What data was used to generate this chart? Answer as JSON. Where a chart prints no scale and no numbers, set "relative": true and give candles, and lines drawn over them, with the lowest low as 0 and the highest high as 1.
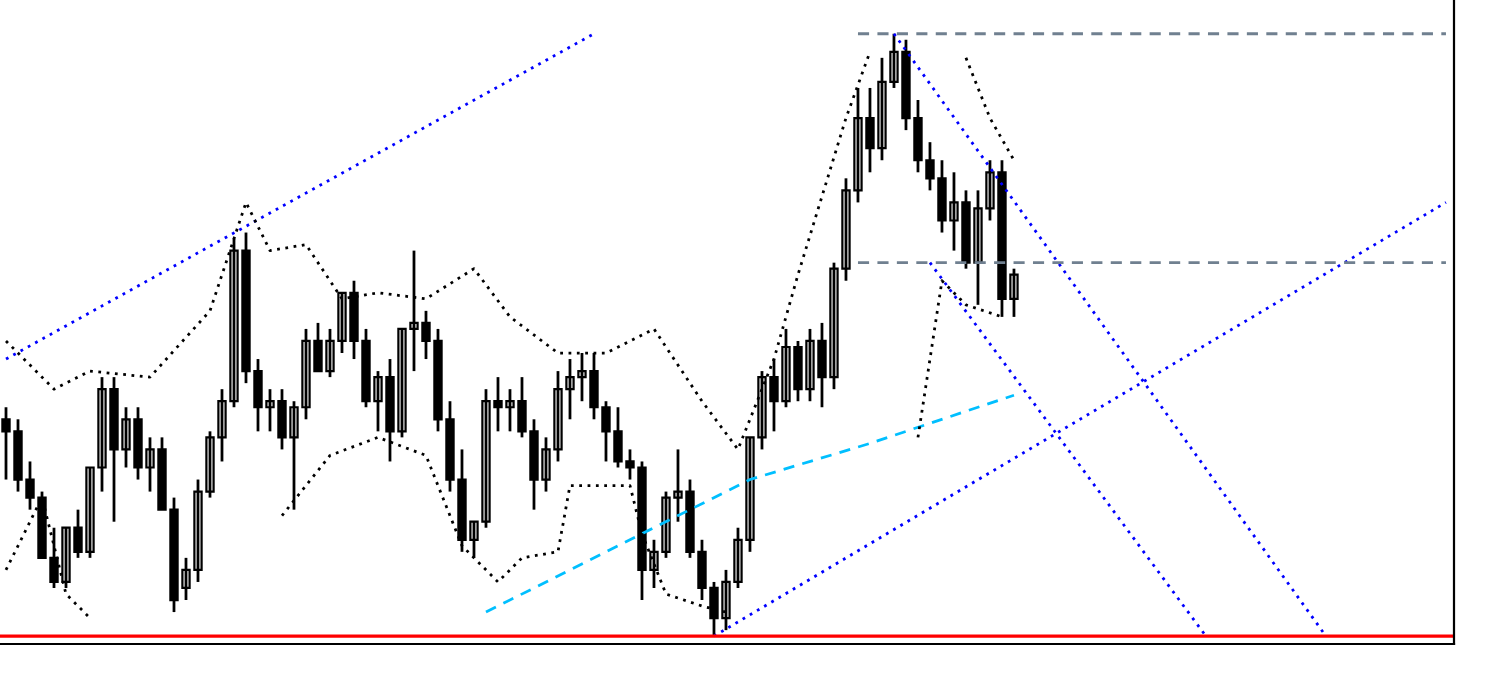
{
  "chart_data": {
    "type": "candlestick",
    "relative": true,
    "legend": false,
    "categories": [
      null,
      null,
      null,
      null,
      null,
      null,
      null,
      null,
      null,
      null,
      null,
      null,
      null,
      null,
      null,
      null,
      null,
      null,
      null,
      null,
      null,
      null,
      null,
      null,
      null,
      null,
      null,
      null,
      null,
      null,
      null,
      null,
      null,
      null,
      null,
      null,
      null,
      null,
      null,
      null,
      null,
      null,
      null,
      null,
      null,
      null,
      null,
      null,
      null,
      null,
      null,
      null,
      null,
      null,
      null,
      null,
      null,
      null,
      null,
      null,
      null,
      null,
      null,
      null,
      null,
      null,
      null,
      null,
      null,
      null,
      null,
      null,
      null,
      null,
      null,
      null,
      null,
      null,
      null,
      null,
      null,
      null,
      null,
      null,
      null,
      null,
      null,
      null,
      null,
      null,
      null,
      null,
      null,
      null,
      null,
      null,
      null,
      null,
      null,
      null,
      null,
      null,
      null,
      null,
      null,
      null,
      null,
      null,
      null,
      null,
      null,
      null,
      null,
      null,
      null,
      null,
      null,
      null,
      null,
      null,
      null
    ],
    "ohlc": [
      [
        0.36,
        0.38,
        0.26,
        0.34
      ],
      [
        0.34,
        0.36,
        0.24,
        0.26
      ],
      [
        0.26,
        0.29,
        0.21,
        0.23
      ],
      [
        0.23,
        0.24,
        0.13,
        0.13
      ],
      [
        0.13,
        0.18,
        0.08,
        0.09
      ],
      [
        0.09,
        0.18,
        0.08,
        0.18
      ],
      [
        0.18,
        0.21,
        0.13,
        0.14
      ],
      [
        0.14,
        0.28,
        0.13,
        0.28
      ],
      [
        0.28,
        0.43,
        0.24,
        0.41
      ],
      [
        0.41,
        0.43,
        0.19,
        0.31
      ],
      [
        0.31,
        0.38,
        0.28,
        0.36
      ],
      [
        0.36,
        0.38,
        0.26,
        0.28
      ],
      [
        0.28,
        0.33,
        0.24,
        0.31
      ],
      [
        0.31,
        0.33,
        0.21,
        0.21
      ],
      [
        0.21,
        0.23,
        0.04,
        0.06
      ],
      [
        0.08,
        0.13,
        0.06,
        0.11
      ],
      [
        0.11,
        0.26,
        0.09,
        0.24
      ],
      [
        0.24,
        0.34,
        0.23,
        0.33
      ],
      [
        0.33,
        0.41,
        0.29,
        0.39
      ],
      [
        0.39,
        0.66,
        0.38,
        0.64
      ],
      [
        0.64,
        0.67,
        0.42,
        0.44
      ],
      [
        0.44,
        0.46,
        0.34,
        0.38
      ],
      [
        0.38,
        0.41,
        0.34,
        0.39
      ],
      [
        0.39,
        0.41,
        0.31,
        0.33
      ],
      [
        0.33,
        0.39,
        0.21,
        0.38
      ],
      [
        0.38,
        0.51,
        0.36,
        0.49
      ],
      [
        0.49,
        0.52,
        0.44,
        0.44
      ],
      [
        0.44,
        0.51,
        0.43,
        0.49
      ],
      [
        0.49,
        0.57,
        0.47,
        0.57
      ],
      [
        0.57,
        0.59,
        0.46,
        0.49
      ],
      [
        0.49,
        0.51,
        0.38,
        0.39
      ],
      [
        0.39,
        0.44,
        0.34,
        0.43
      ],
      [
        0.43,
        0.46,
        0.29,
        0.34
      ],
      [
        0.34,
        0.51,
        0.33,
        0.51
      ],
      [
        0.51,
        0.64,
        0.44,
        0.52
      ],
      [
        0.52,
        0.54,
        0.46,
        0.49
      ],
      [
        0.49,
        0.51,
        0.34,
        0.36
      ],
      [
        0.36,
        0.39,
        0.24,
        0.26
      ],
      [
        0.26,
        0.31,
        0.14,
        0.16
      ],
      [
        0.16,
        0.19,
        0.13,
        0.19
      ],
      [
        0.19,
        0.41,
        0.18,
        0.39
      ],
      [
        0.39,
        0.43,
        0.34,
        0.38
      ],
      [
        0.38,
        0.41,
        0.34,
        0.39
      ],
      [
        0.39,
        0.43,
        0.33,
        0.34
      ],
      [
        0.34,
        0.36,
        0.21,
        0.26
      ],
      [
        0.26,
        0.33,
        0.24,
        0.31
      ],
      [
        0.31,
        0.44,
        0.29,
        0.41
      ],
      [
        0.41,
        0.46,
        0.36,
        0.43
      ],
      [
        0.43,
        0.47,
        0.39,
        0.44
      ],
      [
        0.44,
        0.47,
        0.36,
        0.38
      ],
      [
        0.38,
        0.39,
        0.29,
        0.34
      ],
      [
        0.34,
        0.38,
        0.28,
        0.29
      ],
      [
        0.29,
        0.31,
        0.26,
        0.28
      ],
      [
        0.28,
        0.29,
        0.06,
        0.11
      ],
      [
        0.11,
        0.16,
        0.08,
        0.14
      ],
      [
        0.14,
        0.24,
        0.13,
        0.23
      ],
      [
        0.23,
        0.31,
        0.19,
        0.24
      ],
      [
        0.24,
        0.26,
        0.13,
        0.14
      ],
      [
        0.14,
        0.16,
        0.06,
        0.08
      ],
      [
        0.08,
        0.09,
        0.0,
        0.03
      ],
      [
        0.03,
        0.11,
        0.01,
        0.09
      ],
      [
        0.09,
        0.18,
        0.08,
        0.16
      ],
      [
        0.16,
        0.33,
        0.14,
        0.33
      ],
      [
        0.33,
        0.44,
        0.31,
        0.43
      ],
      [
        0.43,
        0.46,
        0.34,
        0.39
      ],
      [
        0.39,
        0.51,
        0.38,
        0.48
      ],
      [
        0.48,
        0.49,
        0.39,
        0.41
      ],
      [
        0.41,
        0.51,
        0.39,
        0.49
      ],
      [
        0.49,
        0.52,
        0.38,
        0.43
      ],
      [
        0.43,
        0.62,
        0.41,
        0.61
      ],
      [
        0.61,
        0.76,
        0.59,
        0.74
      ],
      [
        0.74,
        0.91,
        0.72,
        0.86
      ],
      [
        0.86,
        0.91,
        0.77,
        0.81
      ],
      [
        0.81,
        0.96,
        0.79,
        0.92
      ],
      [
        0.92,
        1.0,
        0.91,
        0.97
      ],
      [
        0.97,
        0.99,
        0.84,
        0.86
      ],
      [
        0.86,
        0.89,
        0.77,
        0.79
      ],
      [
        0.79,
        0.82,
        0.74,
        0.76
      ],
      [
        0.76,
        0.79,
        0.67,
        0.69
      ],
      [
        0.69,
        0.77,
        0.64,
        0.72
      ],
      [
        0.72,
        0.74,
        0.61,
        0.62
      ],
      [
        0.62,
        0.74,
        0.55,
        0.71
      ],
      [
        0.71,
        0.79,
        0.69,
        0.77
      ],
      [
        0.77,
        0.79,
        0.53,
        0.56
      ],
      [
        0.56,
        0.61,
        0.53,
        0.6
      ],
      null,
      null,
      null,
      null,
      null,
      null,
      null,
      null,
      null,
      null,
      null,
      null,
      null,
      null,
      null,
      null,
      null,
      null,
      null,
      null,
      null,
      null,
      null,
      null,
      null,
      null,
      null,
      null,
      null,
      null,
      null,
      null,
      null,
      null,
      null,
      null
    ],
    "ref_lines": [
      {
        "axis": "y",
        "value": 0.0,
        "color": "#ff0000"
      }
    ],
    "series": [
      {
        "type": "line",
        "color": "#0000ff",
        "line_style": "dotted",
        "values": [
          0.46,
          null,
          null,
          null,
          null,
          null,
          null,
          null,
          null,
          null,
          null,
          null,
          null,
          null,
          null,
          null,
          null,
          null,
          null,
          null,
          null,
          null,
          null,
          null,
          null,
          null,
          null,
          null,
          null,
          null,
          null,
          null,
          null,
          null,
          null,
          null,
          null,
          null,
          null,
          null,
          null,
          null,
          null,
          null,
          null,
          null,
          null,
          null,
          null,
          1.0,
          null,
          null,
          null,
          null,
          null,
          null,
          null,
          null,
          null,
          null,
          null,
          null,
          null,
          null,
          null,
          null,
          null,
          null,
          null,
          null,
          null,
          null,
          null,
          null,
          null,
          null,
          null,
          null,
          null,
          null,
          null,
          null,
          null,
          null,
          null,
          null,
          null,
          null,
          null,
          null,
          null,
          null,
          null,
          null,
          null,
          null,
          null,
          null,
          null,
          null,
          null,
          null,
          null,
          null,
          null,
          null,
          null,
          null,
          null,
          null,
          null,
          null,
          null,
          null,
          null,
          null,
          null,
          null,
          null,
          null,
          null
        ]
      },
      {
        "type": "line",
        "color": "#0000ff",
        "line_style": "dotted",
        "values": [
          null,
          null,
          null,
          null,
          null,
          null,
          null,
          null,
          null,
          null,
          null,
          null,
          null,
          null,
          null,
          null,
          null,
          null,
          null,
          null,
          null,
          null,
          null,
          null,
          null,
          null,
          null,
          null,
          null,
          null,
          null,
          null,
          null,
          null,
          null,
          null,
          null,
          null,
          null,
          null,
          null,
          null,
          null,
          null,
          null,
          null,
          null,
          null,
          null,
          null,
          null,
          null,
          null,
          null,
          null,
          null,
          null,
          null,
          null,
          0.0,
          null,
          null,
          null,
          null,
          null,
          null,
          null,
          null,
          null,
          null,
          null,
          null,
          null,
          null,
          null,
          null,
          null,
          null,
          null,
          null,
          null,
          null,
          null,
          null,
          null,
          null,
          null,
          null,
          null,
          null,
          null,
          null,
          null,
          null,
          null,
          null,
          null,
          null,
          null,
          null,
          null,
          null,
          null,
          null,
          null,
          null,
          null,
          null,
          null,
          null,
          null,
          null,
          null,
          null,
          null,
          null,
          null,
          null,
          null,
          null,
          0.72
        ]
      },
      {
        "type": "line",
        "color": "#0000ff",
        "line_style": "dotted",
        "values": [
          null,
          null,
          null,
          null,
          null,
          null,
          null,
          null,
          null,
          null,
          null,
          null,
          null,
          null,
          null,
          null,
          null,
          null,
          null,
          null,
          null,
          null,
          null,
          null,
          null,
          null,
          null,
          null,
          null,
          null,
          null,
          null,
          null,
          null,
          null,
          null,
          null,
          null,
          null,
          null,
          null,
          null,
          null,
          null,
          null,
          null,
          null,
          null,
          null,
          null,
          null,
          null,
          null,
          null,
          null,
          null,
          null,
          null,
          null,
          null,
          null,
          null,
          null,
          null,
          null,
          null,
          null,
          null,
          null,
          null,
          null,
          null,
          null,
          null,
          1.0,
          null,
          null,
          null,
          null,
          null,
          null,
          null,
          null,
          null,
          null,
          null,
          null,
          null,
          null,
          null,
          null,
          null,
          null,
          null,
          null,
          null,
          null,
          null,
          null,
          null,
          null,
          null,
          null,
          null,
          null,
          null,
          null,
          null,
          null,
          null,
          0.0,
          null,
          null,
          null,
          null,
          null,
          null,
          null,
          null,
          null,
          null
        ]
      },
      {
        "type": "line",
        "color": "#0000ff",
        "line_style": "dotted",
        "values": [
          null,
          null,
          null,
          null,
          null,
          null,
          null,
          null,
          null,
          null,
          null,
          null,
          null,
          null,
          null,
          null,
          null,
          null,
          null,
          null,
          null,
          null,
          null,
          null,
          null,
          null,
          null,
          null,
          null,
          null,
          null,
          null,
          null,
          null,
          null,
          null,
          null,
          null,
          null,
          null,
          null,
          null,
          null,
          null,
          null,
          null,
          null,
          null,
          null,
          null,
          null,
          null,
          null,
          null,
          null,
          null,
          null,
          null,
          null,
          null,
          null,
          null,
          null,
          null,
          null,
          null,
          null,
          null,
          null,
          null,
          null,
          null,
          null,
          null,
          null,
          null,
          null,
          0.62,
          null,
          null,
          null,
          null,
          null,
          null,
          null,
          null,
          null,
          null,
          null,
          null,
          null,
          null,
          null,
          null,
          null,
          null,
          null,
          null,
          null,
          null,
          0.0,
          null,
          null,
          null,
          null,
          null,
          null,
          null,
          null,
          null,
          null,
          null,
          null,
          null,
          null,
          null,
          null,
          null,
          null,
          null,
          null
        ]
      },
      {
        "type": "line",
        "color": "#00bfff",
        "line_style": "dashed",
        "values": [
          null,
          null,
          null,
          null,
          null,
          null,
          null,
          null,
          null,
          null,
          null,
          null,
          null,
          null,
          null,
          null,
          null,
          null,
          null,
          null,
          null,
          null,
          null,
          null,
          null,
          null,
          null,
          null,
          null,
          null,
          null,
          null,
          null,
          null,
          null,
          null,
          null,
          null,
          null,
          null,
          0.04,
          null,
          null,
          null,
          null,
          null,
          null,
          null,
          null,
          null,
          null,
          null,
          null,
          null,
          null,
          null,
          null,
          null,
          null,
          null,
          null,
          null,
          0.26,
          null,
          null,
          null,
          null,
          null,
          null,
          null,
          null,
          null,
          0.32,
          null,
          null,
          null,
          null,
          null,
          null,
          null,
          null,
          null,
          null,
          null,
          0.4,
          null,
          null,
          null,
          null,
          null,
          null,
          null,
          null,
          null,
          null,
          null,
          null,
          null,
          null,
          null,
          null,
          null,
          null,
          null,
          null,
          null,
          null,
          null,
          null,
          null,
          null,
          null,
          null,
          null,
          null,
          null,
          null,
          null,
          null,
          null,
          null
        ]
      },
      {
        "type": "line",
        "color": "#708090",
        "line_style": "dashed",
        "values": [
          null,
          null,
          null,
          null,
          null,
          null,
          null,
          null,
          null,
          null,
          null,
          null,
          null,
          null,
          null,
          null,
          null,
          null,
          null,
          null,
          null,
          null,
          null,
          null,
          null,
          null,
          null,
          null,
          null,
          null,
          null,
          null,
          null,
          null,
          null,
          null,
          null,
          null,
          null,
          null,
          null,
          null,
          null,
          null,
          null,
          null,
          null,
          null,
          null,
          null,
          null,
          null,
          null,
          null,
          null,
          null,
          null,
          null,
          null,
          null,
          null,
          null,
          null,
          null,
          null,
          null,
          null,
          null,
          null,
          null,
          null,
          1.0,
          null,
          null,
          null,
          null,
          null,
          null,
          null,
          null,
          null,
          null,
          null,
          null,
          null,
          null,
          null,
          null,
          null,
          null,
          null,
          null,
          null,
          null,
          null,
          null,
          null,
          null,
          null,
          null,
          null,
          null,
          null,
          null,
          null,
          null,
          null,
          null,
          null,
          null,
          null,
          null,
          null,
          null,
          null,
          null,
          null,
          null,
          null,
          null,
          1.0
        ]
      },
      {
        "type": "line",
        "color": "#708090",
        "line_style": "dashed",
        "values": [
          null,
          null,
          null,
          null,
          null,
          null,
          null,
          null,
          null,
          null,
          null,
          null,
          null,
          null,
          null,
          null,
          null,
          null,
          null,
          null,
          null,
          null,
          null,
          null,
          null,
          null,
          null,
          null,
          null,
          null,
          null,
          null,
          null,
          null,
          null,
          null,
          null,
          null,
          null,
          null,
          null,
          null,
          null,
          null,
          null,
          null,
          null,
          null,
          null,
          null,
          null,
          null,
          null,
          null,
          null,
          null,
          null,
          null,
          null,
          null,
          null,
          null,
          null,
          null,
          null,
          null,
          null,
          null,
          null,
          null,
          null,
          0.62,
          null,
          null,
          null,
          null,
          null,
          null,
          null,
          null,
          null,
          null,
          null,
          null,
          null,
          null,
          null,
          null,
          null,
          null,
          null,
          null,
          null,
          null,
          null,
          null,
          null,
          null,
          null,
          null,
          null,
          null,
          null,
          null,
          null,
          null,
          null,
          null,
          null,
          null,
          null,
          null,
          null,
          null,
          null,
          null,
          null,
          null,
          null,
          null,
          0.62
        ]
      },
      {
        "type": "line",
        "color": "#000000",
        "line_style": "dotted",
        "values": [
          0.49,
          null,
          null,
          null,
          0.41,
          null,
          null,
          0.44,
          null,
          null,
          null,
          null,
          0.43,
          null,
          null,
          null,
          null,
          0.54,
          null,
          null,
          0.72,
          null,
          0.64,
          null,
          null,
          0.65,
          null,
          null,
          0.56,
          null,
          null,
          0.57,
          null,
          null,
          null,
          0.56,
          null,
          null,
          null,
          0.61,
          null,
          null,
          0.53,
          null,
          null,
          null,
          0.47,
          null,
          null,
          null,
          0.47,
          null,
          null,
          null,
          0.51,
          null,
          null,
          null,
          0.39,
          null,
          null,
          0.31,
          null,
          null,
          0.46,
          null,
          0.6,
          null,
          null,
          null,
          0.86,
          null,
          0.97,
          null,
          null,
          null,
          null,
          null,
          null,
          null,
          null,
          null,
          null,
          null,
          null,
          null,
          null,
          null,
          null,
          null,
          null,
          null,
          null,
          null,
          null,
          null,
          null,
          null,
          null,
          null,
          null,
          null,
          null,
          null,
          null,
          null,
          null,
          null,
          null,
          null,
          null,
          null,
          null,
          null,
          null,
          null,
          null,
          null,
          null,
          null,
          null
        ]
      },
      {
        "type": "line",
        "color": "#000000",
        "line_style": "dotted",
        "values": [
          null,
          null,
          null,
          null,
          null,
          null,
          null,
          null,
          null,
          null,
          null,
          null,
          null,
          null,
          null,
          null,
          null,
          null,
          null,
          null,
          null,
          null,
          null,
          null,
          null,
          null,
          null,
          null,
          null,
          null,
          null,
          null,
          null,
          null,
          null,
          null,
          null,
          null,
          null,
          null,
          null,
          null,
          null,
          null,
          null,
          null,
          null,
          null,
          null,
          null,
          null,
          null,
          null,
          null,
          null,
          null,
          null,
          null,
          null,
          null,
          null,
          null,
          null,
          null,
          null,
          null,
          null,
          null,
          null,
          null,
          null,
          null,
          null,
          null,
          null,
          null,
          null,
          null,
          null,
          null,
          0.96,
          null,
          0.86,
          null,
          0.79,
          null,
          null,
          null,
          null,
          null,
          null,
          null,
          null,
          null,
          null,
          null,
          null,
          null,
          null,
          null,
          null,
          null,
          null,
          null,
          null,
          null,
          null,
          null,
          null,
          null,
          null,
          null,
          null,
          null,
          null,
          null,
          null,
          null,
          null,
          null,
          null
        ]
      },
      {
        "type": "line",
        "color": "#000000",
        "line_style": "dotted",
        "values": [
          0.11,
          null,
          null,
          0.23,
          null,
          0.07,
          null,
          0.03,
          null,
          null,
          null,
          null,
          null,
          null,
          null,
          null,
          null,
          null,
          null,
          null,
          null,
          null,
          null,
          null,
          null,
          null,
          null,
          null,
          null,
          null,
          null,
          null,
          null,
          null,
          null,
          null,
          null,
          null,
          null,
          null,
          null,
          null,
          null,
          null,
          null,
          null,
          null,
          null,
          null,
          null,
          null,
          null,
          null,
          null,
          null,
          null,
          null,
          null,
          null,
          null,
          null,
          null,
          null,
          null,
          null,
          null,
          null,
          null,
          null,
          null,
          null,
          null,
          null,
          null,
          null,
          null,
          null,
          null,
          null,
          null,
          null,
          null,
          null,
          null,
          null,
          null,
          null,
          null,
          null,
          null,
          null,
          null,
          null,
          null,
          null,
          null,
          null,
          null,
          null,
          null,
          null,
          null,
          null,
          null,
          null,
          null,
          null,
          null,
          null,
          null,
          null,
          null,
          null,
          null,
          null,
          null,
          null,
          null,
          null,
          null,
          null
        ]
      },
      {
        "type": "line",
        "color": "#000000",
        "line_style": "dotted",
        "values": [
          null,
          null,
          null,
          null,
          null,
          null,
          null,
          null,
          null,
          null,
          null,
          null,
          null,
          null,
          null,
          null,
          null,
          null,
          null,
          null,
          null,
          null,
          null,
          0.2,
          null,
          null,
          null,
          0.3,
          null,
          null,
          null,
          0.33,
          null,
          null,
          null,
          0.3,
          null,
          null,
          0.15,
          null,
          null,
          0.09,
          null,
          0.13,
          null,
          null,
          0.14,
          0.25,
          null,
          null,
          0.25,
          null,
          0.25,
          0.17,
          null,
          0.07,
          null,
          null,
          0.05,
          null,
          0.04,
          null,
          null,
          null,
          null,
          null,
          null,
          null,
          null,
          null,
          null,
          null,
          null,
          null,
          null,
          null,
          null,
          null,
          null,
          null,
          null,
          null,
          null,
          null,
          null,
          null,
          null,
          null,
          null,
          null,
          null,
          null,
          null,
          null,
          null,
          null,
          null,
          null,
          null,
          null,
          null,
          null,
          null,
          null,
          null,
          null,
          null,
          null,
          null,
          null,
          null,
          null,
          null,
          null,
          null,
          null,
          null,
          null,
          null,
          null,
          null
        ]
      },
      {
        "type": "line",
        "color": "#000000",
        "line_style": "dotted",
        "values": [
          null,
          null,
          null,
          null,
          null,
          null,
          null,
          null,
          null,
          null,
          null,
          null,
          null,
          null,
          null,
          null,
          null,
          null,
          null,
          null,
          null,
          null,
          null,
          null,
          null,
          null,
          null,
          null,
          null,
          null,
          null,
          null,
          null,
          null,
          null,
          null,
          null,
          null,
          null,
          null,
          null,
          null,
          null,
          null,
          null,
          null,
          null,
          null,
          null,
          null,
          null,
          null,
          null,
          null,
          null,
          null,
          null,
          null,
          null,
          null,
          null,
          null,
          null,
          null,
          null,
          null,
          null,
          null,
          null,
          null,
          null,
          null,
          null,
          null,
          null,
          null,
          0.33,
          null,
          0.59,
          null,
          0.55,
          null,
          null,
          0.53,
          null,
          null,
          null,
          null,
          null,
          null,
          null,
          null,
          null,
          null,
          null,
          null,
          null,
          null,
          null,
          null,
          null,
          null,
          null,
          null,
          null,
          null,
          null,
          null,
          null,
          null,
          null,
          null,
          null,
          null,
          null,
          null,
          null,
          null,
          null,
          null,
          null
        ]
      }
    ]
  }
}
